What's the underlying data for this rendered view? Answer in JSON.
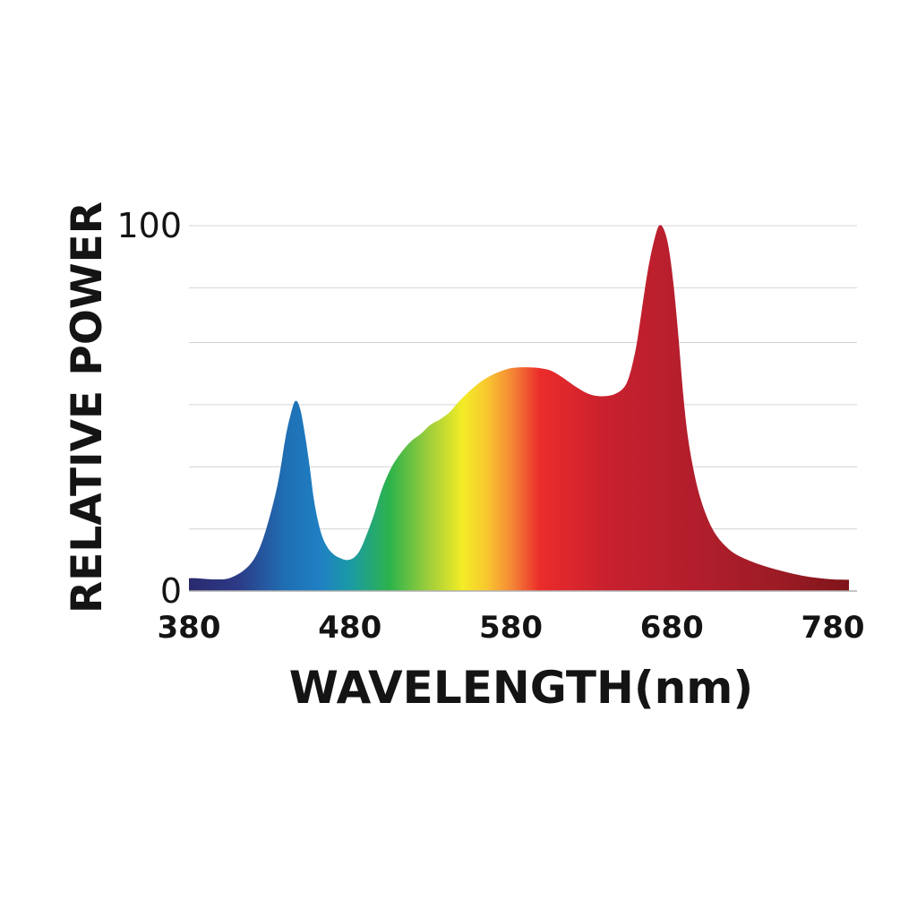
{
  "chart_data": {
    "type": "area",
    "xlabel": "WAVELENGTH(nm)",
    "ylabel": "RELATIVE POWER",
    "xlim": [
      380,
      790
    ],
    "ylim": [
      0,
      100
    ],
    "x_ticks": [
      380,
      480,
      580,
      680,
      780
    ],
    "y_ticks": [
      0,
      100
    ],
    "y_gridlines": [
      0,
      17,
      34,
      51,
      68,
      83,
      100
    ],
    "grid": true,
    "legend": "none",
    "series": [
      {
        "x": [
          380,
          385,
          395,
          405,
          415,
          422,
          428,
          435,
          440,
          443,
          446,
          449,
          452,
          455,
          458,
          462,
          466,
          470,
          474,
          478,
          482,
          486,
          490,
          495,
          500,
          506,
          512,
          518,
          524,
          530,
          536,
          542,
          548,
          555,
          562,
          570,
          578,
          585,
          592,
          598,
          605,
          612,
          620,
          628,
          636,
          645,
          652,
          657,
          660,
          663,
          666,
          669,
          672,
          675,
          678,
          681,
          684,
          687,
          690,
          694,
          698,
          703,
          708,
          714,
          720,
          730,
          740,
          750,
          760,
          770,
          780,
          790
        ],
        "y": [
          3.5,
          3.5,
          3.2,
          3.5,
          6,
          10,
          17,
          29,
          42,
          48,
          52,
          50,
          43,
          34,
          24,
          16,
          12,
          10,
          9,
          8.5,
          9,
          11,
          15,
          21,
          28,
          34,
          38,
          41,
          43,
          45.5,
          47,
          49,
          52,
          55,
          57.5,
          59.5,
          60.8,
          61.2,
          61.2,
          61,
          60.3,
          58.5,
          56,
          54,
          53.3,
          54,
          57,
          65,
          73,
          82,
          90,
          96,
          100,
          99,
          94,
          84,
          70,
          54,
          42,
          32,
          25,
          19,
          15,
          12,
          10,
          8,
          6.5,
          5.3,
          4.3,
          3.6,
          3.2,
          3.1
        ]
      }
    ],
    "gradient_stops": [
      {
        "nm": 380,
        "color": "#2a2a6e"
      },
      {
        "nm": 410,
        "color": "#2c3a86"
      },
      {
        "nm": 440,
        "color": "#1f6fb3"
      },
      {
        "nm": 462,
        "color": "#1f80c3"
      },
      {
        "nm": 480,
        "color": "#1b9aa6"
      },
      {
        "nm": 505,
        "color": "#2db34a"
      },
      {
        "nm": 530,
        "color": "#a3cf3a"
      },
      {
        "nm": 550,
        "color": "#f3ec26"
      },
      {
        "nm": 565,
        "color": "#f8c72f"
      },
      {
        "nm": 580,
        "color": "#f58a36"
      },
      {
        "nm": 598,
        "color": "#eb2c2a"
      },
      {
        "nm": 640,
        "color": "#c8202e"
      },
      {
        "nm": 700,
        "color": "#b01e2c"
      },
      {
        "nm": 750,
        "color": "#9a1b24"
      },
      {
        "nm": 790,
        "color": "#7e1419"
      }
    ],
    "colors": {
      "gridline": "#d4d4d4",
      "baseline": "#b0b0b0",
      "text": "#141414"
    }
  }
}
